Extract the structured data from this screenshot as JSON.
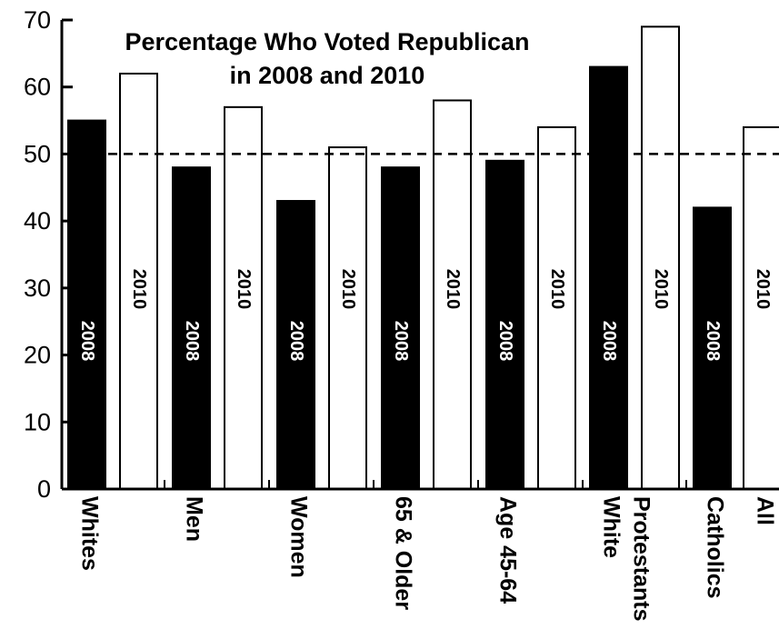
{
  "chart_data": {
    "type": "bar",
    "title_lines": [
      "Percentage Who Voted Republican",
      "in 2008 and 2010"
    ],
    "xlabel": "",
    "ylabel": "",
    "ylim": [
      0,
      70
    ],
    "yticks": [
      "0",
      "10",
      "20",
      "30",
      "40",
      "50",
      "60",
      "70"
    ],
    "reference_line": 50,
    "grid": false,
    "legend": "none",
    "categories": [
      {
        "lines": [
          "Whites"
        ]
      },
      {
        "lines": [
          "Men"
        ]
      },
      {
        "lines": [
          "Women"
        ]
      },
      {
        "lines": [
          "65 & Older"
        ]
      },
      {
        "lines": [
          "Age 45-64"
        ]
      },
      {
        "lines": [
          "White",
          "Protestants"
        ]
      },
      {
        "lines": [
          "Catholics"
        ]
      },
      {
        "lines": [
          "All"
        ]
      }
    ],
    "series": [
      {
        "label": "2008",
        "color": "#000000",
        "text_color": "#ffffff",
        "values": [
          55,
          48,
          43,
          48,
          49,
          63,
          42,
          null
        ]
      },
      {
        "label": "2010",
        "color": "#ffffff",
        "text_color": "#000000",
        "values": [
          62,
          57,
          51,
          58,
          54,
          69,
          null,
          54
        ]
      }
    ]
  }
}
